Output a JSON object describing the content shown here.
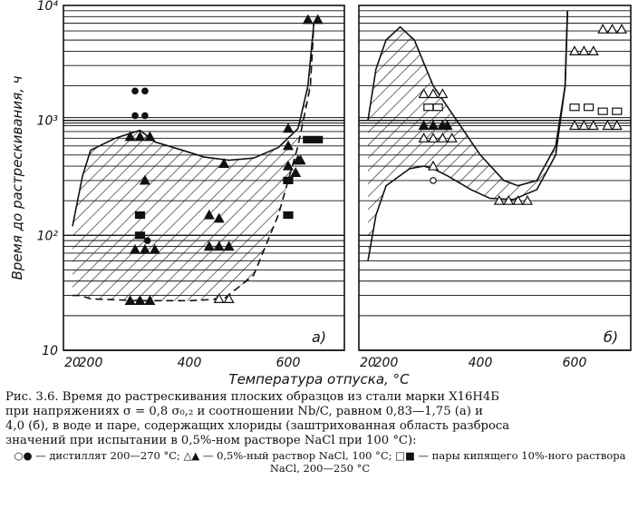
{
  "chart_data": {
    "type": "scatter",
    "ylabel": "Время до растрескивания, ч",
    "xlabel": "Температура отпуска, °C",
    "yscale": "log",
    "ylim": [
      10,
      10000
    ],
    "y_ticks": [
      {
        "value": 10,
        "label": "10"
      },
      {
        "value": 100,
        "label": "10²"
      },
      {
        "value": 1000,
        "label": "10³"
      },
      {
        "value": 10000,
        "label": "10⁴"
      }
    ],
    "x_ticks": [
      {
        "value": 20,
        "label": "20"
      },
      {
        "value": 200,
        "label": "200"
      },
      {
        "value": 400,
        "label": "400"
      },
      {
        "value": 600,
        "label": "600"
      }
    ],
    "grid": true,
    "panels": [
      {
        "label": "а)",
        "band_upper": [
          [
            20,
            120
          ],
          [
            120,
            330
          ],
          [
            200,
            550
          ],
          [
            250,
            700
          ],
          [
            300,
            820
          ],
          [
            330,
            650
          ],
          [
            380,
            560
          ],
          [
            430,
            480
          ],
          [
            480,
            450
          ],
          [
            530,
            470
          ],
          [
            580,
            580
          ],
          [
            620,
            850
          ],
          [
            640,
            2000
          ],
          [
            652,
            7000
          ]
        ],
        "band_lower": [
          [
            20,
            30
          ],
          [
            100,
            30
          ],
          [
            200,
            28
          ],
          [
            300,
            27
          ],
          [
            400,
            27
          ],
          [
            470,
            28
          ],
          [
            530,
            45
          ],
          [
            580,
            150
          ],
          [
            620,
            600
          ],
          [
            645,
            2000
          ],
          [
            652,
            7000
          ]
        ],
        "series": [
          {
            "name": "дистиллят 200—270 °C",
            "marker": "circle-filled",
            "points": [
              [
                290,
                1800
              ],
              [
                310,
                1800
              ],
              [
                290,
                1100
              ],
              [
                310,
                1100
              ],
              [
                300,
                100
              ],
              [
                315,
                90
              ]
            ]
          },
          {
            "name": "0,5%-ный раствор NaCl, 100 °C (разрушился)",
            "marker": "triangle-filled",
            "points": [
              [
                280,
                720
              ],
              [
                300,
                720
              ],
              [
                320,
                720
              ],
              [
                310,
                300
              ],
              [
                290,
                75
              ],
              [
                310,
                75
              ],
              [
                330,
                75
              ],
              [
                280,
                27
              ],
              [
                300,
                27
              ],
              [
                320,
                27
              ],
              [
                440,
                150
              ],
              [
                460,
                140
              ],
              [
                440,
                80
              ],
              [
                460,
                80
              ],
              [
                480,
                80
              ],
              [
                470,
                420
              ],
              [
                600,
                850
              ],
              [
                600,
                600
              ],
              [
                620,
                450
              ],
              [
                600,
                400
              ],
              [
                615,
                350
              ],
              [
                625,
                450
              ],
              [
                640,
                7500
              ],
              [
                660,
                7500
              ]
            ]
          },
          {
            "name": "0,5%-ный раствор NaCl, 100 °C (не разрушился)",
            "marker": "triangle-open",
            "points": [
              [
                460,
                28
              ],
              [
                480,
                28
              ]
            ]
          },
          {
            "name": "пары кипящего 10%-ного раствора NaCl, 200—250 °C",
            "marker": "square-filled",
            "points": [
              [
                300,
                150
              ],
              [
                300,
                100
              ],
              [
                600,
                300
              ],
              [
                600,
                150
              ],
              [
                640,
                680
              ],
              [
                660,
                680
              ]
            ]
          }
        ]
      },
      {
        "label": "б)",
        "band_upper": [
          [
            20,
            1000
          ],
          [
            100,
            2800
          ],
          [
            200,
            5000
          ],
          [
            230,
            6500
          ],
          [
            260,
            5000
          ],
          [
            300,
            2000
          ],
          [
            350,
            1000
          ],
          [
            400,
            500
          ],
          [
            450,
            300
          ],
          [
            480,
            270
          ],
          [
            520,
            300
          ],
          [
            560,
            600
          ],
          [
            580,
            2000
          ],
          [
            585,
            9000
          ]
        ],
        "band_lower": [
          [
            20,
            60
          ],
          [
            100,
            150
          ],
          [
            200,
            270
          ],
          [
            250,
            380
          ],
          [
            280,
            400
          ],
          [
            300,
            380
          ],
          [
            330,
            330
          ],
          [
            380,
            250
          ],
          [
            420,
            210
          ],
          [
            470,
            205
          ],
          [
            520,
            250
          ],
          [
            560,
            500
          ],
          [
            580,
            2000
          ],
          [
            585,
            9000
          ]
        ],
        "series": [
          {
            "name": "дистиллят 200—270 °C",
            "marker": "circle-open",
            "points": [
              [
                300,
                300
              ]
            ]
          },
          {
            "name": "0,5%-ный раствор NaCl, 100 °C (не разрушился)",
            "marker": "triangle-open",
            "points": [
              [
                280,
                700
              ],
              [
                300,
                700
              ],
              [
                320,
                700
              ],
              [
                340,
                700
              ],
              [
                280,
                1700
              ],
              [
                300,
                1700
              ],
              [
                320,
                1700
              ],
              [
                300,
                400
              ],
              [
                440,
                200
              ],
              [
                460,
                200
              ],
              [
                480,
                200
              ],
              [
                500,
                200
              ],
              [
                600,
                4000
              ],
              [
                620,
                4000
              ],
              [
                640,
                4000
              ],
              [
                660,
                6200
              ],
              [
                680,
                6200
              ],
              [
                700,
                6200
              ],
              [
                600,
                900
              ],
              [
                620,
                900
              ],
              [
                640,
                900
              ],
              [
                670,
                900
              ],
              [
                690,
                900
              ]
            ]
          },
          {
            "name": "0,5%-ный раствор NaCl, 100 °C (разрушился)",
            "marker": "triangle-filled",
            "points": [
              [
                280,
                900
              ],
              [
                300,
                900
              ],
              [
                320,
                900
              ],
              [
                330,
                900
              ]
            ]
          },
          {
            "name": "пары кипящего 10%-ного раствора NaCl, 200—250 °C",
            "marker": "square-open",
            "points": [
              [
                290,
                1300
              ],
              [
                310,
                1300
              ],
              [
                600,
                1300
              ],
              [
                630,
                1300
              ],
              [
                660,
                1200
              ],
              [
                690,
                1200
              ]
            ]
          }
        ]
      }
    ]
  },
  "caption": {
    "text": "Рис. 3.6. Время до растрескивания плоских образцов из стали марки Х16Н4Б\nпри напряжениях σ = 0,8 σ₀,₂ и соотношении Nb/C, равном 0,83—1,75 (а) и\n4,0 (б), в воде и паре, содержащих хлориды (заштрихованная область разброса\nзначений при испытании в 0,5%-ном растворе NaCl при 100 °C):",
    "legend": "○● — дистиллят 200—270 °C; △▲ — 0,5%-ный раствор NaCl, 100 °C; □■ — пары кипящего 10%-ного раствора NaCl, 200—250 °C"
  }
}
